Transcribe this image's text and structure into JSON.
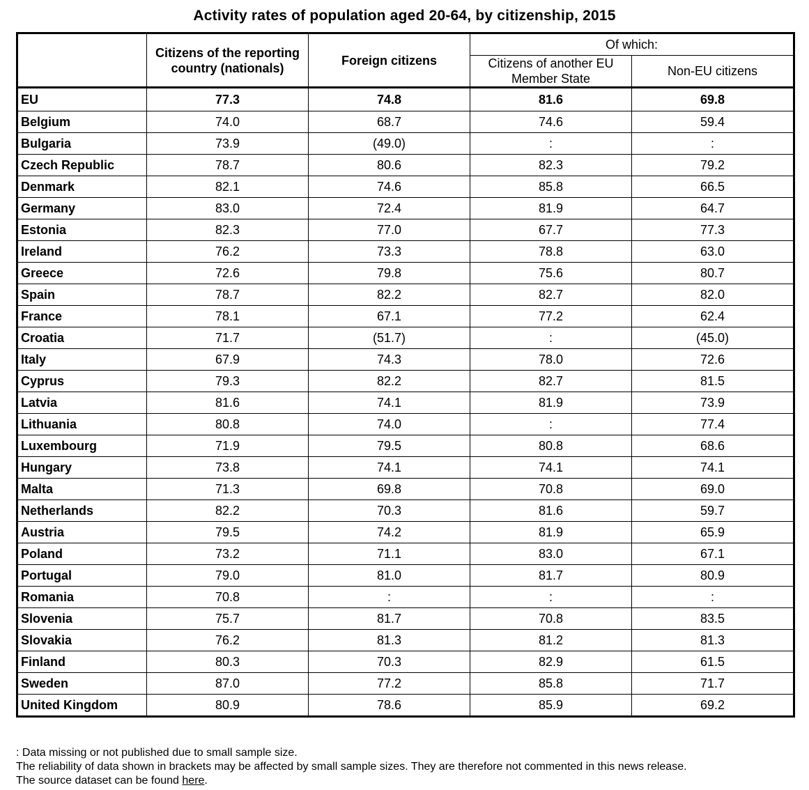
{
  "title": "Activity rates of population aged 20-64, by citizenship, 2015",
  "headers": {
    "col_nationals": "Citizens of the reporting country (nationals)",
    "col_foreign": "Foreign citizens",
    "of_which": "Of which:",
    "col_other_eu": "Citizens of another EU Member State",
    "col_non_eu": "Non-EU citizens"
  },
  "rows": [
    {
      "country": "EU",
      "nationals": "77.3",
      "foreign": "74.8",
      "other_eu": "81.6",
      "non_eu": "69.8"
    },
    {
      "country": "Belgium",
      "nationals": "74.0",
      "foreign": "68.7",
      "other_eu": "74.6",
      "non_eu": "59.4"
    },
    {
      "country": "Bulgaria",
      "nationals": "73.9",
      "foreign": "(49.0)",
      "other_eu": ":",
      "non_eu": ":"
    },
    {
      "country": "Czech Republic",
      "nationals": "78.7",
      "foreign": "80.6",
      "other_eu": "82.3",
      "non_eu": "79.2"
    },
    {
      "country": "Denmark",
      "nationals": "82.1",
      "foreign": "74.6",
      "other_eu": "85.8",
      "non_eu": "66.5"
    },
    {
      "country": "Germany",
      "nationals": "83.0",
      "foreign": "72.4",
      "other_eu": "81.9",
      "non_eu": "64.7"
    },
    {
      "country": "Estonia",
      "nationals": "82.3",
      "foreign": "77.0",
      "other_eu": "67.7",
      "non_eu": "77.3"
    },
    {
      "country": "Ireland",
      "nationals": "76.2",
      "foreign": "73.3",
      "other_eu": "78.8",
      "non_eu": "63.0"
    },
    {
      "country": "Greece",
      "nationals": "72.6",
      "foreign": "79.8",
      "other_eu": "75.6",
      "non_eu": "80.7"
    },
    {
      "country": "Spain",
      "nationals": "78.7",
      "foreign": "82.2",
      "other_eu": "82.7",
      "non_eu": "82.0"
    },
    {
      "country": "France",
      "nationals": "78.1",
      "foreign": "67.1",
      "other_eu": "77.2",
      "non_eu": "62.4"
    },
    {
      "country": "Croatia",
      "nationals": "71.7",
      "foreign": "(51.7)",
      "other_eu": ":",
      "non_eu": "(45.0)"
    },
    {
      "country": "Italy",
      "nationals": "67.9",
      "foreign": "74.3",
      "other_eu": "78.0",
      "non_eu": "72.6"
    },
    {
      "country": "Cyprus",
      "nationals": "79.3",
      "foreign": "82.2",
      "other_eu": "82.7",
      "non_eu": "81.5"
    },
    {
      "country": "Latvia",
      "nationals": "81.6",
      "foreign": "74.1",
      "other_eu": "81.9",
      "non_eu": "73.9"
    },
    {
      "country": "Lithuania",
      "nationals": "80.8",
      "foreign": "74.0",
      "other_eu": ":",
      "non_eu": "77.4"
    },
    {
      "country": "Luxembourg",
      "nationals": "71.9",
      "foreign": "79.5",
      "other_eu": "80.8",
      "non_eu": "68.6"
    },
    {
      "country": "Hungary",
      "nationals": "73.8",
      "foreign": "74.1",
      "other_eu": "74.1",
      "non_eu": "74.1"
    },
    {
      "country": "Malta",
      "nationals": "71.3",
      "foreign": "69.8",
      "other_eu": "70.8",
      "non_eu": "69.0"
    },
    {
      "country": "Netherlands",
      "nationals": "82.2",
      "foreign": "70.3",
      "other_eu": "81.6",
      "non_eu": "59.7"
    },
    {
      "country": "Austria",
      "nationals": "79.5",
      "foreign": "74.2",
      "other_eu": "81.9",
      "non_eu": "65.9"
    },
    {
      "country": "Poland",
      "nationals": "73.2",
      "foreign": "71.1",
      "other_eu": "83.0",
      "non_eu": "67.1"
    },
    {
      "country": "Portugal",
      "nationals": "79.0",
      "foreign": "81.0",
      "other_eu": "81.7",
      "non_eu": "80.9"
    },
    {
      "country": "Romania",
      "nationals": "70.8",
      "foreign": ":",
      "other_eu": ":",
      "non_eu": ":"
    },
    {
      "country": "Slovenia",
      "nationals": "75.7",
      "foreign": "81.7",
      "other_eu": "70.8",
      "non_eu": "83.5"
    },
    {
      "country": "Slovakia",
      "nationals": "76.2",
      "foreign": "81.3",
      "other_eu": "81.2",
      "non_eu": "81.3"
    },
    {
      "country": "Finland",
      "nationals": "80.3",
      "foreign": "70.3",
      "other_eu": "82.9",
      "non_eu": "61.5"
    },
    {
      "country": "Sweden",
      "nationals": "87.0",
      "foreign": "77.2",
      "other_eu": "85.8",
      "non_eu": "71.7"
    },
    {
      "country": "United Kingdom",
      "nationals": "80.9",
      "foreign": "78.6",
      "other_eu": "85.9",
      "non_eu": "69.2"
    }
  ],
  "notes": {
    "note1": ": Data missing or not published due to small sample size.",
    "note2": "The reliability of data shown in brackets may be affected by small sample sizes. They are therefore not commented in this news release.",
    "note3_prefix": "The source dataset can be found ",
    "note3_link": "here",
    "note3_suffix": "."
  }
}
